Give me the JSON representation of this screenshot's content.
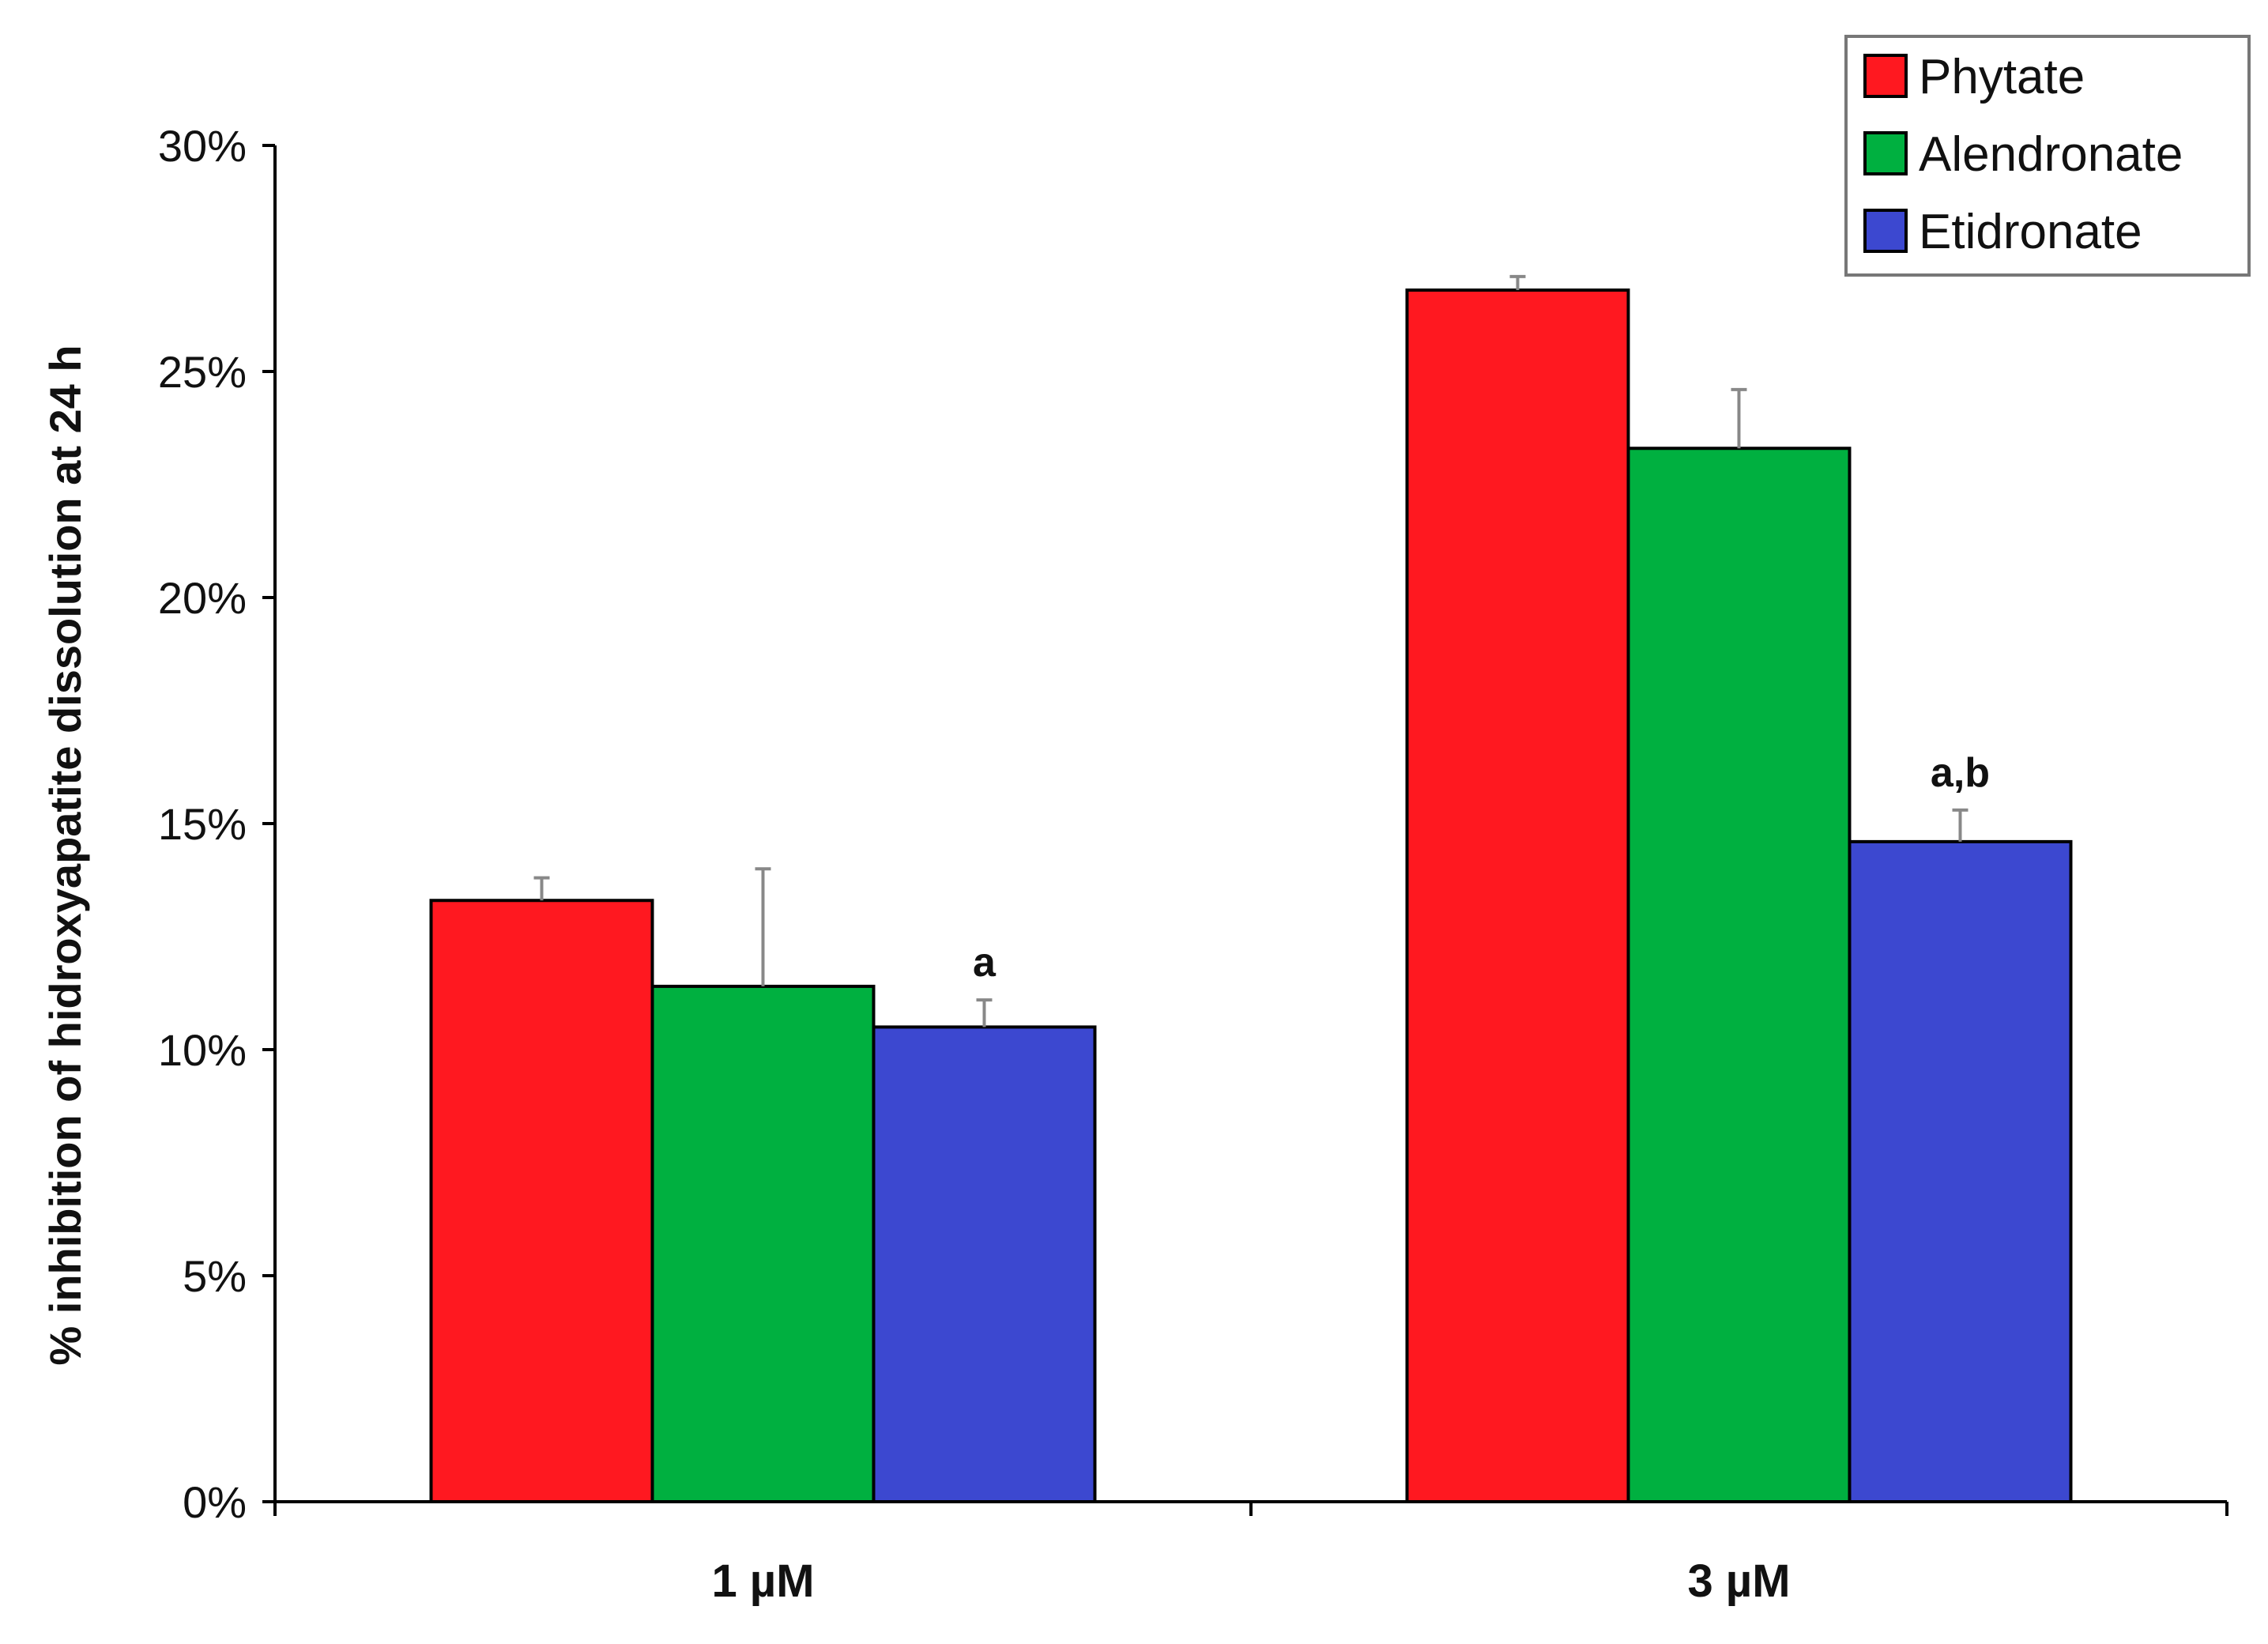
{
  "chart_data": {
    "type": "bar",
    "title": "",
    "xlabel": "",
    "ylabel": "% inhibition of hidroxyapatite dissolution at 24 h",
    "categories": [
      "1 µM",
      "3 µM"
    ],
    "series": [
      {
        "name": "Phytate",
        "color": "#ff1820",
        "values": [
          13.3,
          26.8
        ],
        "errors": [
          0.5,
          0.3
        ]
      },
      {
        "name": "Alendronate",
        "color": "#00b040",
        "values": [
          11.4,
          23.3
        ],
        "errors": [
          2.6,
          1.3
        ]
      },
      {
        "name": "Etidronate",
        "color": "#3c48d0",
        "values": [
          10.5,
          14.6
        ],
        "errors": [
          0.6,
          0.7
        ]
      }
    ],
    "annotations": [
      {
        "category_index": 0,
        "series_index": 2,
        "text": "a"
      },
      {
        "category_index": 1,
        "series_index": 2,
        "text": "a,b"
      }
    ],
    "ylim": [
      0,
      30
    ],
    "yticks": [
      0,
      5,
      10,
      15,
      20,
      25,
      30
    ],
    "ytick_labels": [
      "0%",
      "5%",
      "10%",
      "15%",
      "20%",
      "25%",
      "30%"
    ],
    "grid": false,
    "legend_position": "top-right"
  }
}
